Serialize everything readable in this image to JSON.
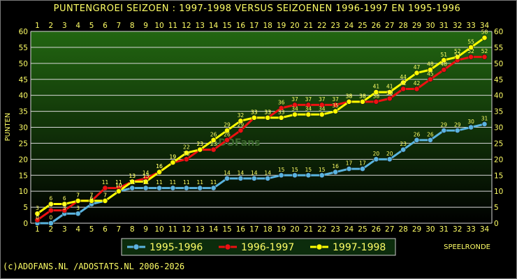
{
  "chart_data": {
    "type": "line",
    "title": "PUNTENGROEI  SEIZOEN : 1997-1998 VERSUS SEIZOENEN 1996-1997 EN 1995-1996",
    "xlabel": "SPEELRONDE",
    "ylabel": "PUNTEN",
    "x": [
      1,
      2,
      3,
      4,
      5,
      6,
      7,
      8,
      9,
      10,
      11,
      12,
      13,
      14,
      15,
      16,
      17,
      18,
      19,
      20,
      21,
      22,
      23,
      24,
      25,
      26,
      27,
      28,
      29,
      30,
      31,
      32,
      33,
      34
    ],
    "xlim": [
      1,
      34
    ],
    "ylim": [
      0,
      60
    ],
    "yticks": [
      0,
      5,
      10,
      15,
      20,
      25,
      30,
      35,
      40,
      45,
      50,
      55,
      60
    ],
    "grid": true,
    "legend_position": "bottom",
    "series": [
      {
        "name": "1995-1996",
        "color": "#5ab4e0",
        "values": [
          0,
          0,
          3,
          3,
          6,
          7,
          10,
          11,
          11,
          11,
          11,
          11,
          11,
          11,
          14,
          14,
          14,
          14,
          15,
          15,
          15,
          15,
          16,
          17,
          17,
          20,
          20,
          23,
          26,
          26,
          29,
          29,
          30,
          31
        ]
      },
      {
        "name": "1996-1997",
        "color": "#ee1111",
        "values": [
          1,
          4,
          4,
          7,
          7,
          11,
          11,
          13,
          14,
          16,
          19,
          20,
          23,
          23,
          26,
          29,
          33,
          33,
          36,
          37,
          37,
          37,
          37,
          38,
          38,
          38,
          39,
          42,
          42,
          45,
          48,
          51,
          52,
          52
        ]
      },
      {
        "name": "1997-1998",
        "color": "#ffff00",
        "values": [
          3,
          6,
          6,
          7,
          7,
          7,
          10,
          13,
          13,
          16,
          19,
          22,
          23,
          26,
          29,
          32,
          33,
          33,
          33,
          34,
          34,
          34,
          35,
          38,
          38,
          41,
          41,
          44,
          47,
          48,
          51,
          52,
          55,
          58
        ]
      }
    ]
  },
  "watermark": "ADOFans",
  "footer": "(c)ADOFANS.NL /ADOSTATS.NL 2006-2026",
  "colors": {
    "background": "#000000",
    "plot_top": "#226611",
    "plot_bottom": "#000000",
    "text": "#ffff66",
    "grid": "#ffffff"
  }
}
